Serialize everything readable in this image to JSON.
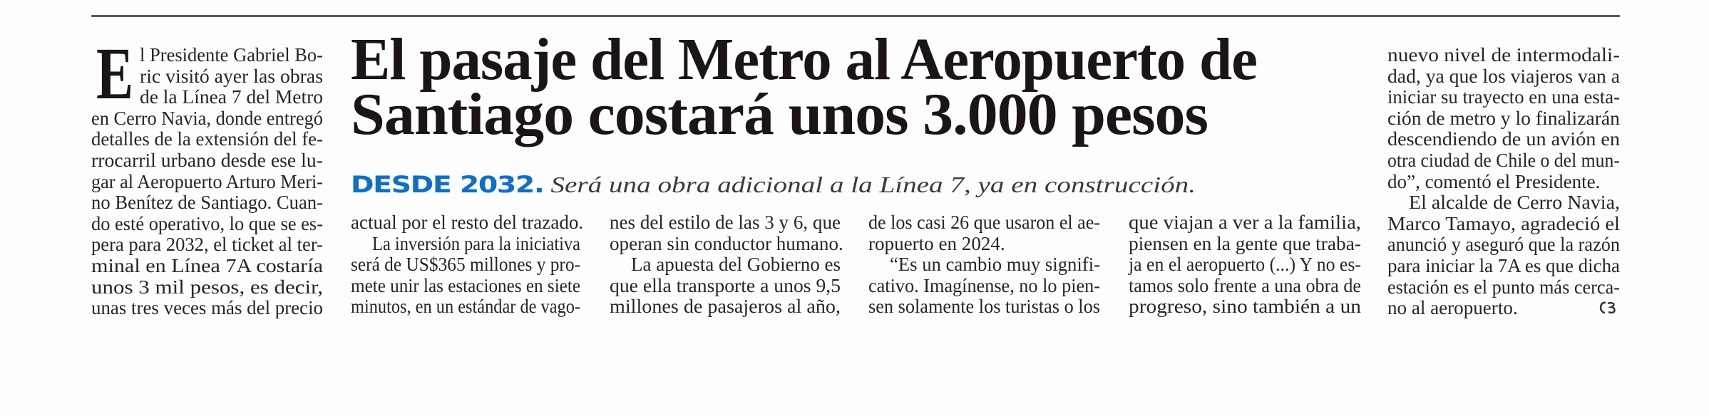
{
  "article": {
    "headline": [
      "El pasaje del Metro al Aeropuerto de",
      "Santiago costará unos 3.000 pesos"
    ],
    "deck": {
      "kicker": "DESDE 2032.",
      "text": "Será una obra adicional a la Línea 7, ya en construcción."
    },
    "drop_cap": "E",
    "end_mark": "end-of-article-mark",
    "colors": {
      "kicker": "#1d6cb3",
      "headline": "#1b1516",
      "rule": "#5a5a5a"
    },
    "columns": [
      {
        "paragraphs": [
          {
            "continues": false,
            "drop_cap": true,
            "lines": [
              "l Presidente Gabriel Bo-",
              "ric visitó ayer las obras",
              "de la Línea 7 del Metro",
              "en Cerro Navia, donde entregó",
              "detalles de la extensión del fe-",
              "rrocarril urbano desde ese lu-",
              "gar al Aeropuerto Arturo Meri-",
              "no Benítez de Santiago. Cuan-",
              "do esté operativo, lo que se es-",
              "pera para 2032, el ticket al ter-",
              "minal en Línea 7A costaría",
              "unos 3 mil pesos, es decir,",
              "unas tres veces más del precio"
            ],
            "open_end": true
          }
        ]
      },
      {
        "paragraphs": [
          {
            "continues": true,
            "lines": [
              "actual por el resto del trazado."
            ]
          },
          {
            "continues": false,
            "lines": [
              "La inversión para la iniciativa",
              "será de US$365 millones y pro-",
              "mete unir las estaciones en siete",
              "minutos, en un estándar de vago-"
            ],
            "open_end": true
          }
        ]
      },
      {
        "paragraphs": [
          {
            "continues": true,
            "lines": [
              "nes del estilo de las 3 y 6, que",
              "operan sin conductor humano."
            ]
          },
          {
            "continues": false,
            "lines": [
              "La apuesta del Gobierno es",
              "que ella transporte a unos 9,5",
              "millones de pasajeros al año,"
            ],
            "open_end": true
          }
        ]
      },
      {
        "paragraphs": [
          {
            "continues": true,
            "lines": [
              "de los casi 26 que usaron el ae-",
              "ropuerto en 2024."
            ]
          },
          {
            "continues": false,
            "lines": [
              "“Es un cambio muy signifi-",
              "cativo. Imagínense, no lo pien-",
              "sen solamente los turistas o los"
            ],
            "open_end": true
          }
        ]
      },
      {
        "paragraphs": [
          {
            "continues": true,
            "lines": [
              "que viajan a ver a la familia,",
              "piensen en la gente que traba-",
              "ja en el aeropuerto (...) Y no es-",
              "tamos solo frente a una obra de",
              "progreso, sino también a un"
            ],
            "open_end": true
          }
        ]
      },
      {
        "paragraphs": [
          {
            "continues": true,
            "lines": [
              "nuevo nivel de intermodali-",
              "dad, ya que los viajeros van a",
              "iniciar su trayecto en una esta-",
              "ción de metro y lo finalizarán",
              "descendiendo de un avión en",
              "otra ciudad de Chile o del mun-",
              "do”, comentó el Presidente."
            ]
          },
          {
            "continues": false,
            "lines": [
              "El alcalde de Cerro Navia,",
              "Marco Tamayo, agradeció el",
              "anunció y aseguró que la razón",
              "para iniciar la 7A es que dicha",
              "estación es el punto más cerca-",
              "no al aeropuerto."
            ]
          }
        ]
      }
    ]
  }
}
